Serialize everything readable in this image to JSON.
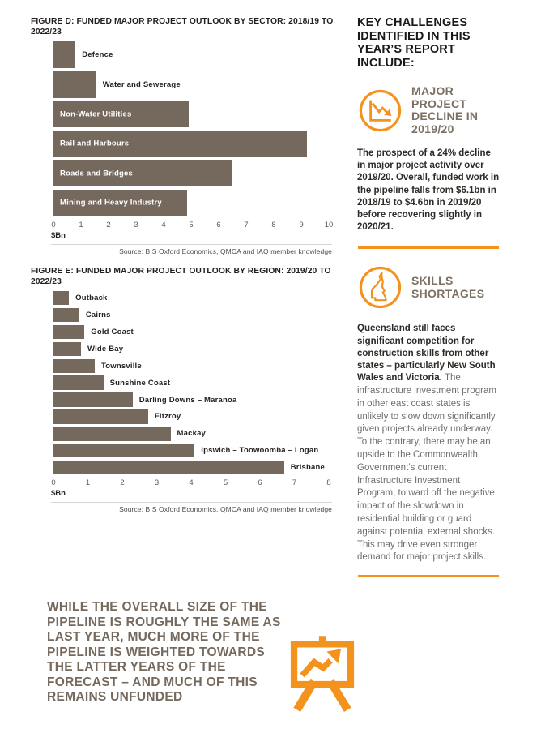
{
  "chart_data": [
    {
      "id": "figure-d",
      "type": "bar",
      "orientation": "horizontal",
      "title": "FIGURE D: FUNDED MAJOR PROJECT OUTLOOK BY SECTOR: 2018/19 TO 2022/23",
      "categories": [
        "Defence",
        "Water and Sewerage",
        "Non-Water Utilities",
        "Rail and Harbours",
        "Roads and Bridges",
        "Mining and Heavy Industry"
      ],
      "values": [
        0.8,
        1.55,
        4.9,
        9.2,
        6.5,
        4.85
      ],
      "labels_inside": [
        false,
        false,
        true,
        true,
        true,
        true
      ],
      "xlabel": "$Bn",
      "xlim": [
        0,
        10
      ],
      "ticks": [
        0,
        1,
        2,
        3,
        4,
        5,
        6,
        7,
        8,
        9,
        10
      ],
      "grid": false,
      "legend": "none",
      "bar_color": "#75695E",
      "source": "Source: BIS Oxford Economics, QMCA and IAQ member knowledge"
    },
    {
      "id": "figure-e",
      "type": "bar",
      "orientation": "horizontal",
      "title": "FIGURE E: FUNDED MAJOR PROJECT OUTLOOK BY REGION: 2019/20 TO 2022/23",
      "categories": [
        "Outback",
        "Cairns",
        "Gold Coast",
        "Wide Bay",
        "Townsville",
        "Sunshine Coast",
        "Darling Downs – Maranoa",
        "Fitzroy",
        "Mackay",
        "Ipswich – Toowoomba – Logan",
        "Brisbane"
      ],
      "values": [
        0.45,
        0.75,
        0.9,
        0.8,
        1.2,
        1.45,
        2.3,
        2.75,
        3.4,
        4.1,
        6.7
      ],
      "labels_inside": [
        false,
        false,
        false,
        false,
        false,
        false,
        false,
        false,
        false,
        false,
        false
      ],
      "xlabel": "$Bn",
      "xlim": [
        0,
        8
      ],
      "ticks": [
        0,
        1,
        2,
        3,
        4,
        5,
        6,
        7,
        8
      ],
      "grid": false,
      "legend": "none",
      "bar_color": "#75695E",
      "source": "Source: BIS Oxford Economics, QMCA and IAQ member knowledge"
    }
  ],
  "right_column": {
    "heading": "KEY CHALLENGES IDENTIFIED IN THIS YEAR’S REPORT INCLUDE:",
    "sections": [
      {
        "icon": "decline-chart-icon",
        "title": "MAJOR PROJECT DECLINE IN 2019/20",
        "body_bold": "The prospect of a 24% decline in major project activity over 2019/20. Overall, funded work in the pipeline falls from $6.1bn in 2018/19 to $4.6bn in 2019/20 before recovering slightly in 2020/21.",
        "body_regular": ""
      },
      {
        "icon": "queensland-map-icon",
        "title": "SKILLS SHORTAGES",
        "body_bold": "Queensland still faces significant competition for construction skills from other states – particularly New South Wales and Victoria. ",
        "body_regular": "The infrastructure investment program in other east coast states is unlikely to slow down significantly given projects already underway. To the contrary, there may be an upside to the Commonwealth Government’s current Infrastructure Investment Program, to ward off the negative impact of the slowdown in residential building or guard against potential external shocks. This may drive even stronger demand for major project skills."
      }
    ]
  },
  "quote": "WHILE THE OVERALL SIZE OF THE PIPELINE IS ROUGHLY THE SAME AS LAST YEAR, MUCH MORE OF THE PIPELINE IS WEIGHTED TOWARDS THE LATTER YEARS OF THE FORECAST – AND MUCH OF THIS REMAINS UNFUNDED",
  "colors": {
    "bar_taupe": "#75695E",
    "heading_taupe": "#7C7064",
    "accent_orange": "#F4921E",
    "body_gray": "#6D6E71",
    "text_black": "#231F20"
  }
}
